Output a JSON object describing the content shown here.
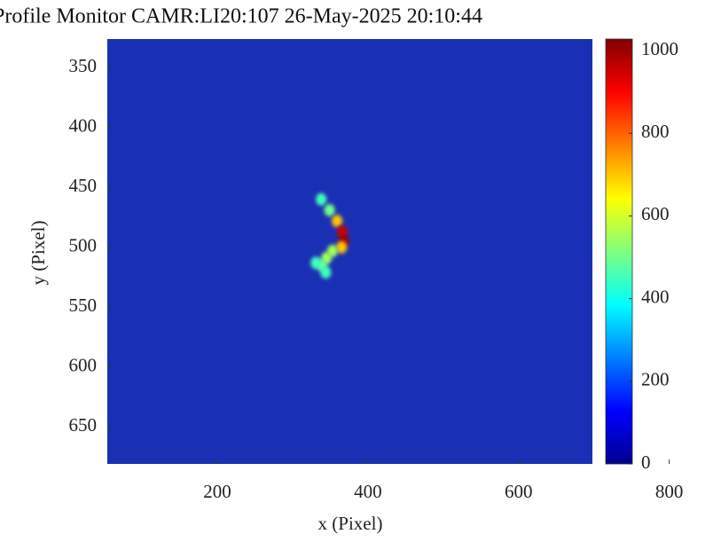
{
  "chart_data": {
    "type": "heatmap",
    "title": "Profile Monitor CAMR:LI20:107 26-May-2025 20:10:44",
    "x_label": "x  (Pixel)",
    "y_label": "y  (Pixel)",
    "xlim": [
      54,
      698
    ],
    "xticks": [
      200,
      400,
      600,
      800
    ],
    "ylim": [
      326,
      681
    ],
    "yticks": [
      350,
      400,
      450,
      500,
      550,
      600,
      650
    ],
    "y_reversed": true,
    "clim": [
      0,
      1028
    ],
    "cticks": [
      0,
      200,
      400,
      600,
      800,
      1000
    ],
    "colormap": "jet",
    "background_color": "#1a30b4",
    "x": [
      338,
      349,
      359,
      366,
      368,
      365,
      353,
      345,
      339,
      331,
      344
    ],
    "y": [
      460,
      469,
      478,
      487,
      495,
      500,
      503,
      509,
      515,
      513,
      521
    ],
    "values": [
      450,
      500,
      700,
      950,
      1000,
      700,
      550,
      550,
      500,
      450,
      450
    ]
  }
}
